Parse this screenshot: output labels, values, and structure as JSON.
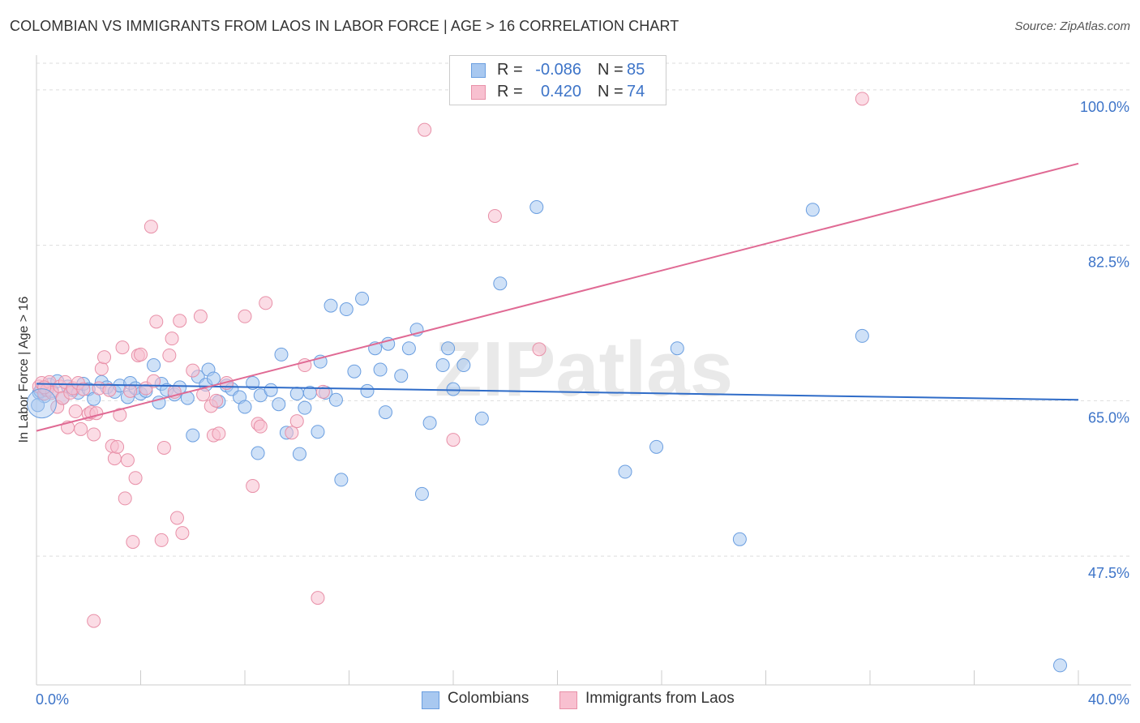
{
  "title": "COLOMBIAN VS IMMIGRANTS FROM LAOS IN LABOR FORCE | AGE > 16 CORRELATION CHART",
  "source": "Source: ZipAtlas.com",
  "watermark": "ZIPatlas",
  "legend": {
    "rows": [
      {
        "r_label": "R =",
        "r_value": "-0.086",
        "n_label": "N =",
        "n_value": "85",
        "color": "#a8c8f0",
        "border": "#6a9ee0"
      },
      {
        "r_label": "R =",
        "r_value": "0.420",
        "n_label": "N =",
        "n_value": "74",
        "color": "#f8c0d0",
        "border": "#e890a8"
      }
    ]
  },
  "bottom_legend": [
    {
      "label": "Colombians",
      "color": "#a8c8f0",
      "border": "#6a9ee0"
    },
    {
      "label": "Immigrants from Laos",
      "color": "#f8c0d0",
      "border": "#e890a8"
    }
  ],
  "chart_data": {
    "type": "scatter",
    "xlabel": "",
    "ylabel": "In Labor Force | Age > 16",
    "xlim": [
      0,
      40
    ],
    "ylim": [
      33,
      103
    ],
    "x_tick_labels": [
      {
        "value": 0,
        "label": "0.0%"
      },
      {
        "value": 40,
        "label": "40.0%"
      }
    ],
    "y_tick_labels": [
      {
        "value": 100,
        "label": "100.0%"
      },
      {
        "value": 82.5,
        "label": "82.5%"
      },
      {
        "value": 65,
        "label": "65.0%"
      },
      {
        "value": 47.5,
        "label": "47.5%"
      }
    ],
    "grid": true,
    "series": [
      {
        "name": "Colombians",
        "color": "#6a9ee0",
        "fill": "#a8c8f0",
        "trend": {
          "x": [
            0,
            40
          ],
          "y": [
            66.9,
            65.1
          ]
        },
        "points": [
          [
            0.1,
            65.9
          ],
          [
            0.2,
            66.4
          ],
          [
            0.3,
            65.5
          ],
          [
            0.5,
            66.8
          ],
          [
            0.6,
            66.1
          ],
          [
            0.8,
            67.2
          ],
          [
            1.0,
            65.3
          ],
          [
            1.2,
            66.6
          ],
          [
            1.4,
            66.2
          ],
          [
            1.6,
            65.9
          ],
          [
            1.8,
            66.9
          ],
          [
            2.0,
            66.3
          ],
          [
            2.2,
            65.2
          ],
          [
            2.5,
            67.1
          ],
          [
            2.7,
            66.5
          ],
          [
            3.0,
            66.0
          ],
          [
            3.2,
            66.7
          ],
          [
            3.5,
            65.4
          ],
          [
            3.6,
            67.0
          ],
          [
            3.8,
            66.4
          ],
          [
            4.0,
            65.8
          ],
          [
            4.2,
            66.1
          ],
          [
            4.5,
            69.0
          ],
          [
            4.7,
            64.8
          ],
          [
            4.8,
            66.9
          ],
          [
            5.0,
            66.2
          ],
          [
            5.3,
            65.7
          ],
          [
            5.5,
            66.5
          ],
          [
            5.8,
            65.3
          ],
          [
            6.0,
            61.1
          ],
          [
            6.2,
            67.7
          ],
          [
            6.5,
            66.8
          ],
          [
            6.6,
            68.5
          ],
          [
            6.8,
            67.5
          ],
          [
            7.0,
            64.9
          ],
          [
            7.3,
            66.7
          ],
          [
            7.5,
            66.3
          ],
          [
            7.8,
            65.4
          ],
          [
            8.0,
            64.3
          ],
          [
            8.3,
            67.0
          ],
          [
            8.5,
            59.1
          ],
          [
            8.6,
            65.6
          ],
          [
            9.0,
            66.2
          ],
          [
            9.3,
            64.6
          ],
          [
            9.4,
            70.2
          ],
          [
            9.6,
            61.4
          ],
          [
            10.0,
            65.8
          ],
          [
            10.1,
            59.0
          ],
          [
            10.3,
            64.2
          ],
          [
            10.5,
            65.9
          ],
          [
            10.8,
            61.5
          ],
          [
            10.9,
            69.4
          ],
          [
            11.1,
            65.9
          ],
          [
            11.3,
            75.7
          ],
          [
            11.5,
            65.1
          ],
          [
            11.7,
            56.1
          ],
          [
            11.9,
            75.3
          ],
          [
            12.2,
            68.3
          ],
          [
            12.5,
            76.5
          ],
          [
            12.7,
            66.1
          ],
          [
            13.0,
            70.9
          ],
          [
            13.2,
            68.5
          ],
          [
            13.4,
            63.7
          ],
          [
            13.5,
            71.4
          ],
          [
            14.0,
            67.8
          ],
          [
            14.3,
            70.9
          ],
          [
            14.6,
            73.0
          ],
          [
            14.8,
            54.5
          ],
          [
            15.1,
            62.5
          ],
          [
            15.6,
            69.0
          ],
          [
            15.8,
            70.9
          ],
          [
            16.0,
            66.3
          ],
          [
            16.4,
            69.0
          ],
          [
            17.1,
            63.0
          ],
          [
            17.8,
            78.2
          ],
          [
            19.2,
            86.8
          ],
          [
            22.6,
            57.0
          ],
          [
            23.8,
            59.8
          ],
          [
            24.6,
            70.9
          ],
          [
            27.0,
            49.4
          ],
          [
            29.8,
            86.5
          ],
          [
            31.7,
            72.3
          ],
          [
            39.3,
            35.2
          ],
          [
            0.05,
            64.5
          ],
          [
            0.15,
            66.1
          ]
        ]
      },
      {
        "name": "Immigrants from Laos",
        "color": "#e890a8",
        "fill": "#f8c0d0",
        "trend": {
          "x": [
            0,
            40
          ],
          "y": [
            61.6,
            91.7
          ]
        },
        "points": [
          [
            0.1,
            66.6
          ],
          [
            0.2,
            67.0
          ],
          [
            0.3,
            65.8
          ],
          [
            0.4,
            66.2
          ],
          [
            0.5,
            67.1
          ],
          [
            0.6,
            65.9
          ],
          [
            0.8,
            64.3
          ],
          [
            0.9,
            66.6
          ],
          [
            1.0,
            65.3
          ],
          [
            1.1,
            67.1
          ],
          [
            1.2,
            62.0
          ],
          [
            1.3,
            65.9
          ],
          [
            1.4,
            66.4
          ],
          [
            1.5,
            63.8
          ],
          [
            1.6,
            67.0
          ],
          [
            1.7,
            61.8
          ],
          [
            1.8,
            66.3
          ],
          [
            2.0,
            63.5
          ],
          [
            2.1,
            63.7
          ],
          [
            2.2,
            61.2
          ],
          [
            2.3,
            63.6
          ],
          [
            2.4,
            66.4
          ],
          [
            2.5,
            68.6
          ],
          [
            2.6,
            69.9
          ],
          [
            2.8,
            66.2
          ],
          [
            2.9,
            59.9
          ],
          [
            3.0,
            58.5
          ],
          [
            3.1,
            59.8
          ],
          [
            3.2,
            63.4
          ],
          [
            3.3,
            71.0
          ],
          [
            3.4,
            54.0
          ],
          [
            3.5,
            58.3
          ],
          [
            3.6,
            66.1
          ],
          [
            3.7,
            49.1
          ],
          [
            3.8,
            56.3
          ],
          [
            3.9,
            70.1
          ],
          [
            4.0,
            70.2
          ],
          [
            4.2,
            66.4
          ],
          [
            4.4,
            84.6
          ],
          [
            4.5,
            67.2
          ],
          [
            4.6,
            73.9
          ],
          [
            4.8,
            49.3
          ],
          [
            4.9,
            59.7
          ],
          [
            5.1,
            70.1
          ],
          [
            5.2,
            72.0
          ],
          [
            5.3,
            66.0
          ],
          [
            5.4,
            51.8
          ],
          [
            5.5,
            74.0
          ],
          [
            5.6,
            50.1
          ],
          [
            6.0,
            68.4
          ],
          [
            6.3,
            74.5
          ],
          [
            6.4,
            65.7
          ],
          [
            6.7,
            64.4
          ],
          [
            6.8,
            61.1
          ],
          [
            6.9,
            65.0
          ],
          [
            7.0,
            61.3
          ],
          [
            7.3,
            67.0
          ],
          [
            8.0,
            74.5
          ],
          [
            8.3,
            55.4
          ],
          [
            8.5,
            62.4
          ],
          [
            8.6,
            62.1
          ],
          [
            8.8,
            76.0
          ],
          [
            9.8,
            61.4
          ],
          [
            10.0,
            62.7
          ],
          [
            10.3,
            69.0
          ],
          [
            10.8,
            42.8
          ],
          [
            11.0,
            66.0
          ],
          [
            14.9,
            95.5
          ],
          [
            16.0,
            60.6
          ],
          [
            17.6,
            85.8
          ],
          [
            19.3,
            70.8
          ],
          [
            31.7,
            99.0
          ],
          [
            2.2,
            40.2
          ],
          [
            0.3,
            66.5
          ]
        ]
      }
    ]
  }
}
